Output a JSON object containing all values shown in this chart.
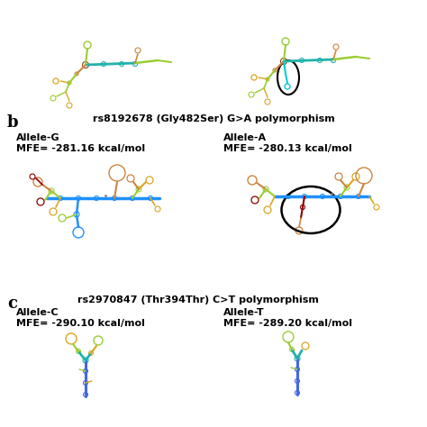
{
  "bg_color": "#ffffff",
  "panel_b_label": "b",
  "panel_c_label": "c",
  "panel_b_title": "rs8192678 (Gly482Ser) G>A polymorphism",
  "panel_c_title": "rs2970847 (Thr394Thr) C>T polymorphism",
  "allele_g_label": "Allele-G",
  "allele_a_label": "Allele-A",
  "allele_c_label": "Allele-C",
  "allele_t_label": "Allele-T",
  "mfe_g": "MFE= -281.16 kcal/mol",
  "mfe_a": "MFE= -280.13 kcal/mol",
  "mfe_c": "MFE= -290.10 kcal/mol",
  "mfe_t": "MFE= -289.20 kcal/mol",
  "label_fontsize": 8,
  "title_fontsize": 8,
  "panel_label_fontsize": 13
}
